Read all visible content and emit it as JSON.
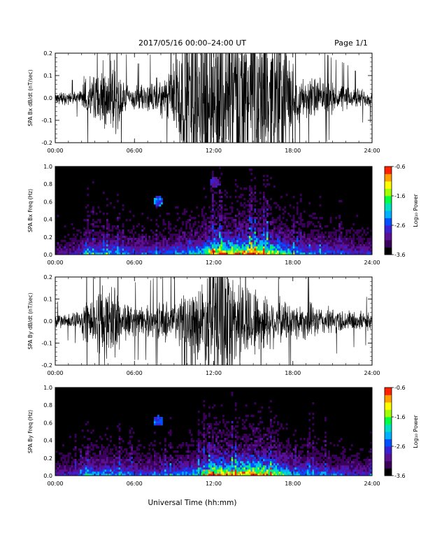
{
  "header": {
    "title": "2017/05/16  00:00–24:00 UT",
    "page": "Page 1/1"
  },
  "footer": {
    "xlabel": "Universal Time (hh:mm)"
  },
  "colors": {
    "trace": "#000000",
    "spectrogram_background": "#000000",
    "colormap": [
      "#000000",
      "#3a005a",
      "#5a1090",
      "#3a20d0",
      "#0050ff",
      "#00b0ff",
      "#00e0c0",
      "#00ff40",
      "#a0ff00",
      "#ffff00",
      "#ffa000",
      "#ff2000"
    ]
  },
  "chart_data": [
    {
      "type": "line",
      "name": "bx-trace",
      "ylabel": "SPA Bx dB/dt (nT/sec)",
      "xlabel": "",
      "xticks": [
        "00:00",
        "06:00",
        "12:00",
        "18:00",
        "24:00"
      ],
      "xlim": [
        0,
        24
      ],
      "ylim": [
        -0.2,
        0.2
      ],
      "yticks": [
        "-0.2",
        "-0.1",
        "0.0",
        "0.1",
        "0.2"
      ],
      "envelope": {
        "x_hours": [
          0,
          1,
          2,
          2.2,
          2.6,
          3,
          3.5,
          3.7,
          4,
          4.2,
          4.5,
          5,
          5.5,
          6,
          6.5,
          7,
          7.5,
          8,
          8.5,
          9,
          9.5,
          10,
          11,
          12,
          13,
          14,
          15,
          16,
          17,
          17.5,
          18,
          18.5,
          19,
          19.5,
          20,
          21,
          22,
          23,
          24
        ],
        "amplitude": [
          0.03,
          0.035,
          0.04,
          0.12,
          0.1,
          0.15,
          0.12,
          0.25,
          0.12,
          0.22,
          0.25,
          0.12,
          0.08,
          0.07,
          0.07,
          0.08,
          0.1,
          0.1,
          0.12,
          0.25,
          0.35,
          0.4,
          0.45,
          0.5,
          0.5,
          0.5,
          0.45,
          0.4,
          0.35,
          0.3,
          0.18,
          0.12,
          0.1,
          0.12,
          0.1,
          0.08,
          0.07,
          0.05,
          0.05
        ]
      }
    },
    {
      "type": "heatmap",
      "name": "bx-spectrogram",
      "ylabel": "SPA Bx Freq (Hz)",
      "xlabel": "",
      "xticks": [
        "00:00",
        "06:00",
        "12:00",
        "18:00",
        "24:00"
      ],
      "xlim": [
        0,
        24
      ],
      "ylim": [
        0,
        1.0
      ],
      "yticks": [
        "0.0",
        "0.2",
        "0.4",
        "0.6",
        "0.8",
        "1.0"
      ],
      "colorbar": {
        "label": "Log₁₀ Power",
        "range": [
          -3.6,
          -0.6
        ],
        "ticks": [
          "-0.6",
          "-1.6",
          "-2.6",
          "-3.6"
        ]
      },
      "activity": {
        "x_hours": [
          0,
          1,
          2,
          2.3,
          3,
          4,
          5,
          6,
          7,
          8,
          9,
          10,
          11,
          11.5,
          12,
          12.5,
          13,
          14,
          15,
          16,
          17,
          18,
          19,
          20,
          21,
          22,
          23,
          24
        ],
        "level": [
          0.15,
          0.2,
          0.25,
          0.45,
          0.35,
          0.4,
          0.35,
          0.3,
          0.3,
          0.3,
          0.35,
          0.4,
          0.45,
          0.6,
          0.85,
          0.7,
          0.7,
          0.75,
          0.8,
          0.75,
          0.6,
          0.4,
          0.35,
          0.35,
          0.3,
          0.3,
          0.25,
          0.25
        ]
      },
      "features": [
        {
          "kind": "blob",
          "x_hours": 7.8,
          "freq_hz": 0.6,
          "level": 0.45
        },
        {
          "kind": "blob",
          "x_hours": 12.1,
          "freq_hz": 0.82,
          "level": 0.3
        }
      ]
    },
    {
      "type": "line",
      "name": "by-trace",
      "ylabel": "SPA By dB/dt (nT/sec)",
      "xlabel": "",
      "xticks": [
        "00:00",
        "06:00",
        "12:00",
        "18:00",
        "24:00"
      ],
      "xlim": [
        0,
        24
      ],
      "ylim": [
        -0.2,
        0.2
      ],
      "yticks": [
        "-0.2",
        "-0.1",
        "0.0",
        "0.1",
        "0.2"
      ],
      "envelope": {
        "x_hours": [
          0,
          1,
          2,
          2.3,
          3,
          3.7,
          4,
          4.5,
          5,
          5.5,
          6,
          7,
          8,
          9,
          10,
          11,
          11.5,
          12,
          12.5,
          13,
          14,
          15,
          16,
          17,
          18,
          19,
          20,
          21,
          22,
          23,
          24
        ],
        "amplitude": [
          0.04,
          0.04,
          0.05,
          0.2,
          0.12,
          0.25,
          0.15,
          0.25,
          0.12,
          0.1,
          0.08,
          0.08,
          0.1,
          0.12,
          0.15,
          0.2,
          0.3,
          0.5,
          0.45,
          0.3,
          0.25,
          0.2,
          0.15,
          0.12,
          0.1,
          0.1,
          0.08,
          0.07,
          0.06,
          0.05,
          0.05
        ]
      }
    },
    {
      "type": "heatmap",
      "name": "by-spectrogram",
      "ylabel": "SPA By Freq (Hz)",
      "xlabel": "",
      "xticks": [
        "00:00",
        "06:00",
        "12:00",
        "18:00",
        "24:00"
      ],
      "xlim": [
        0,
        24
      ],
      "ylim": [
        0,
        1.0
      ],
      "yticks": [
        "0.0",
        "0.2",
        "0.4",
        "0.6",
        "0.8",
        "1.0"
      ],
      "colorbar": {
        "label": "Log₁₀ Power",
        "range": [
          -3.6,
          -0.6
        ],
        "ticks": [
          "-0.6",
          "-1.6",
          "-2.6",
          "-3.6"
        ]
      },
      "activity": {
        "x_hours": [
          0,
          1,
          2,
          2.3,
          3,
          4,
          5,
          6,
          7,
          8,
          9,
          10,
          11,
          11.5,
          12,
          12.5,
          13,
          14,
          15,
          16,
          17,
          18,
          19,
          20,
          21,
          22,
          23,
          24
        ],
        "level": [
          0.2,
          0.25,
          0.3,
          0.45,
          0.35,
          0.4,
          0.35,
          0.3,
          0.3,
          0.3,
          0.35,
          0.4,
          0.45,
          0.6,
          0.85,
          0.75,
          0.7,
          0.75,
          0.8,
          0.75,
          0.6,
          0.4,
          0.35,
          0.35,
          0.3,
          0.3,
          0.25,
          0.25
        ]
      },
      "features": [
        {
          "kind": "blob",
          "x_hours": 7.8,
          "freq_hz": 0.62,
          "level": 0.4
        }
      ]
    }
  ]
}
